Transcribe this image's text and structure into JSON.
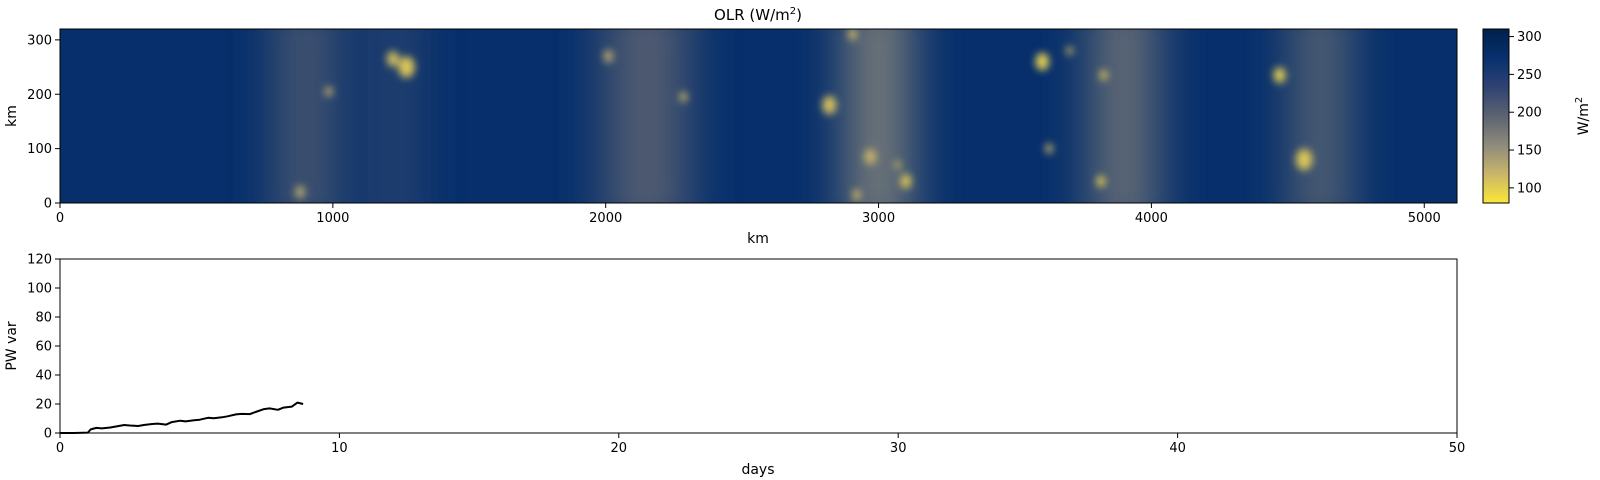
{
  "chart_data": [
    {
      "type": "heatmap",
      "title_main": "OLR (W/m",
      "title_sup": "2",
      "title_end": ")",
      "xlabel": "km",
      "ylabel": "km",
      "xlim": [
        0,
        5120
      ],
      "ylim": [
        0,
        320
      ],
      "x_ticks": [
        0,
        1000,
        2000,
        3000,
        4000,
        5000
      ],
      "y_ticks": [
        0,
        100,
        200,
        300
      ],
      "colormap": {
        "name": "cividis_r",
        "range": [
          80,
          310
        ],
        "colors": [
          "#fde737",
          "#c9b56a",
          "#8e8a7c",
          "#5c6371",
          "#2f4272",
          "#07306e",
          "#00204c"
        ]
      },
      "colorbar": {
        "label_main": "W/m",
        "label_sup": "2",
        "ticks": [
          100,
          150,
          200,
          250,
          300
        ]
      },
      "field": {
        "background": 275,
        "zones": [
          {
            "x": 900,
            "w": 160,
            "value": 195
          },
          {
            "x": 1230,
            "w": 90,
            "value": 215
          },
          {
            "x": 2150,
            "w": 280,
            "value": 200
          },
          {
            "x": 3000,
            "w": 200,
            "value": 160
          },
          {
            "x": 3900,
            "w": 200,
            "value": 175
          },
          {
            "x": 4620,
            "w": 150,
            "value": 180
          }
        ],
        "cores": [
          {
            "x": 880,
            "y": 20,
            "r": 18,
            "value": 130
          },
          {
            "x": 985,
            "y": 205,
            "r": 14,
            "value": 120
          },
          {
            "x": 1220,
            "y": 265,
            "r": 22,
            "value": 110
          },
          {
            "x": 1270,
            "y": 250,
            "r": 30,
            "value": 105
          },
          {
            "x": 2010,
            "y": 270,
            "r": 18,
            "value": 130
          },
          {
            "x": 2285,
            "y": 195,
            "r": 14,
            "value": 115
          },
          {
            "x": 2820,
            "y": 180,
            "r": 26,
            "value": 110
          },
          {
            "x": 2905,
            "y": 310,
            "r": 16,
            "value": 115
          },
          {
            "x": 2970,
            "y": 85,
            "r": 22,
            "value": 120
          },
          {
            "x": 3070,
            "y": 70,
            "r": 10,
            "value": 110
          },
          {
            "x": 3100,
            "y": 40,
            "r": 20,
            "value": 105
          },
          {
            "x": 2920,
            "y": 15,
            "r": 15,
            "value": 115
          },
          {
            "x": 3600,
            "y": 260,
            "r": 25,
            "value": 100
          },
          {
            "x": 3700,
            "y": 280,
            "r": 12,
            "value": 110
          },
          {
            "x": 3825,
            "y": 235,
            "r": 15,
            "value": 110
          },
          {
            "x": 3625,
            "y": 100,
            "r": 14,
            "value": 115
          },
          {
            "x": 3815,
            "y": 40,
            "r": 16,
            "value": 100
          },
          {
            "x": 4470,
            "y": 235,
            "r": 22,
            "value": 100
          },
          {
            "x": 4560,
            "y": 80,
            "r": 30,
            "value": 105
          }
        ]
      }
    },
    {
      "type": "line",
      "title": "",
      "xlabel": "days",
      "ylabel": "PW var",
      "xlim": [
        0,
        50
      ],
      "ylim": [
        0,
        120
      ],
      "x_ticks": [
        0,
        10,
        20,
        30,
        40,
        50
      ],
      "y_ticks": [
        0,
        20,
        40,
        60,
        80,
        100,
        120
      ],
      "line_color": "#000000",
      "series": [
        {
          "x": [
            0,
            0.5,
            1.0,
            1.1,
            1.3,
            1.5,
            1.8,
            2.0,
            2.3,
            2.5,
            2.8,
            3.0,
            3.3,
            3.5,
            3.8,
            4.0,
            4.3,
            4.5,
            4.8,
            5.0,
            5.3,
            5.5,
            5.8,
            6.0,
            6.3,
            6.5,
            6.8,
            7.0,
            7.3,
            7.5,
            7.8,
            8.0,
            8.3,
            8.5,
            8.7
          ],
          "y": [
            0,
            0,
            0.3,
            2.5,
            3.5,
            3.2,
            3.8,
            4.5,
            5.5,
            5.2,
            4.8,
            5.5,
            6.2,
            6.5,
            5.8,
            7.5,
            8.5,
            8.0,
            8.8,
            9.2,
            10.5,
            10.2,
            10.8,
            11.5,
            12.8,
            13.2,
            13.0,
            14.5,
            16.5,
            17.0,
            16.0,
            17.5,
            18.2,
            21.0,
            20.0
          ]
        }
      ]
    }
  ]
}
